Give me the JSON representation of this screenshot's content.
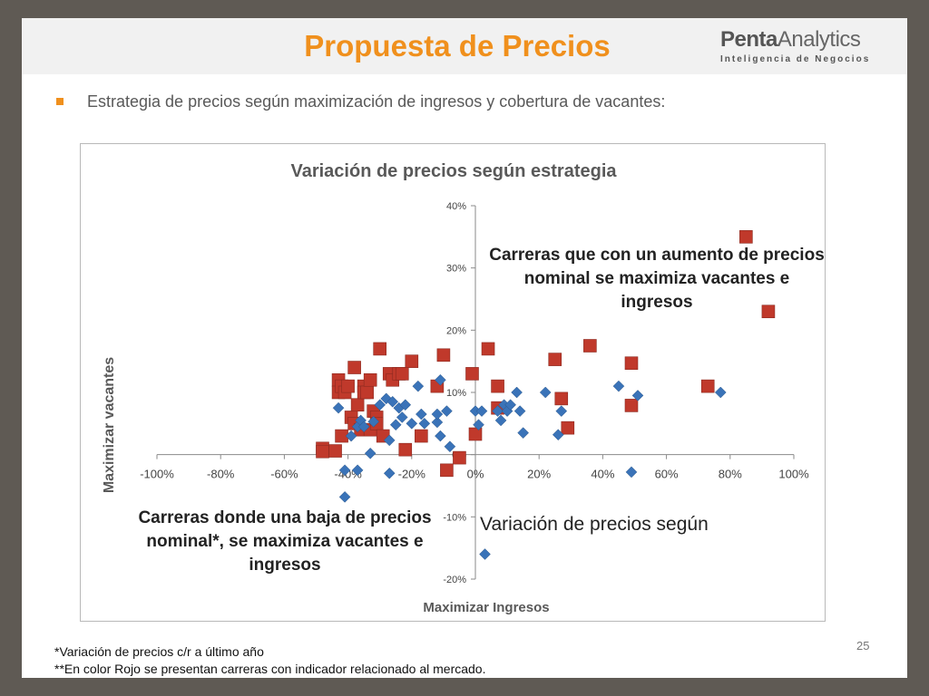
{
  "slide": {
    "title": "Propuesta de Precios",
    "logo_main_bold": "Penta",
    "logo_main_rest": "Analytics",
    "logo_sub": "Inteligencia de Negocios",
    "bullet": "Estrategia de precios según maximización de ingresos y cobertura de vacantes:",
    "annotation_top": "Carreras que con un aumento de precios nominal se maximiza vacantes e ingresos",
    "annotation_bottom": "Carreras donde una baja de precios nominal*, se maximiza vacantes e ingresos",
    "annotation_plain": "Variación de precios según",
    "footnote_1": "*Variación de precios c/r a último año",
    "footnote_2": "**En color Rojo se presentan carreras con  indicador relacionado al mercado.",
    "page_number": "25",
    "colors": {
      "title": "#f0901d",
      "bullet": "#f0901d",
      "red_series": "#c0392b",
      "blue_series": "#3a73b8"
    }
  },
  "chart_data": {
    "type": "scatter",
    "title": "Variación de precios según estrategia",
    "xlabel": "Maximizar Ingresos",
    "ylabel": "Maximizar vacantes",
    "xlim": [
      -1.0,
      1.0
    ],
    "ylim": [
      -0.2,
      0.4
    ],
    "x_ticks": [
      -1.0,
      -0.8,
      -0.6,
      -0.4,
      -0.2,
      0.0,
      0.2,
      0.4,
      0.6,
      0.8,
      1.0
    ],
    "x_tick_labels": [
      "-100%",
      "-80%",
      "-60%",
      "-40%",
      "-20%",
      "0%",
      "20%",
      "40%",
      "60%",
      "80%",
      "100%"
    ],
    "y_ticks": [
      -0.2,
      -0.1,
      0.0,
      0.1,
      0.2,
      0.3,
      0.4
    ],
    "y_tick_labels": [
      "-20%",
      "-10%",
      "0%",
      "10%",
      "20%",
      "30%",
      "40%"
    ],
    "grid": false,
    "series": [
      {
        "marker": "square",
        "color": "#c0392b",
        "x": [
          -0.48,
          -0.48,
          -0.44,
          -0.43,
          -0.43,
          -0.42,
          -0.42,
          -0.41,
          -0.4,
          -0.39,
          -0.38,
          -0.38,
          -0.37,
          -0.36,
          -0.35,
          -0.35,
          -0.34,
          -0.33,
          -0.33,
          -0.32,
          -0.31,
          -0.31,
          -0.3,
          -0.29,
          -0.27,
          -0.26,
          -0.24,
          -0.23,
          -0.22,
          -0.2,
          -0.17,
          -0.12,
          -0.1,
          -0.09,
          -0.05,
          -0.01,
          0.0,
          0.04,
          0.07,
          0.07,
          0.25,
          0.27,
          0.29,
          0.36,
          0.49,
          0.49,
          0.73,
          0.85,
          0.92
        ],
        "y": [
          0.01,
          0.005,
          0.006,
          0.12,
          0.1,
          0.11,
          0.03,
          0.1,
          0.11,
          0.06,
          0.14,
          0.05,
          0.08,
          0.04,
          0.11,
          0.1,
          0.1,
          0.12,
          0.04,
          0.07,
          0.06,
          0.05,
          0.17,
          0.03,
          0.13,
          0.12,
          0.13,
          0.13,
          0.008,
          0.15,
          0.03,
          0.11,
          0.16,
          -0.025,
          -0.005,
          0.13,
          0.033,
          0.17,
          0.075,
          0.11,
          0.153,
          0.09,
          0.043,
          0.175,
          0.079,
          0.147,
          0.11,
          0.35,
          0.23
        ]
      },
      {
        "marker": "diamond",
        "color": "#3a73b8",
        "x": [
          -0.43,
          -0.41,
          -0.41,
          -0.39,
          -0.37,
          -0.37,
          -0.36,
          -0.35,
          -0.33,
          -0.32,
          -0.3,
          -0.28,
          -0.27,
          -0.27,
          -0.26,
          -0.25,
          -0.24,
          -0.23,
          -0.22,
          -0.2,
          -0.18,
          -0.17,
          -0.16,
          -0.12,
          -0.12,
          -0.11,
          -0.11,
          -0.09,
          -0.08,
          0.0,
          0.01,
          0.02,
          0.03,
          0.07,
          0.08,
          0.09,
          0.1,
          0.11,
          0.13,
          0.14,
          0.15,
          0.22,
          0.26,
          0.27,
          0.45,
          0.49,
          0.51,
          0.77
        ],
        "y": [
          0.075,
          -0.025,
          -0.068,
          0.03,
          -0.025,
          0.045,
          0.055,
          0.045,
          0.002,
          0.053,
          0.08,
          0.09,
          0.023,
          -0.03,
          0.085,
          0.048,
          0.075,
          0.06,
          0.08,
          0.05,
          0.11,
          0.065,
          0.05,
          0.052,
          0.065,
          0.12,
          0.03,
          0.07,
          0.013,
          0.07,
          0.048,
          0.07,
          -0.16,
          0.07,
          0.055,
          0.08,
          0.07,
          0.08,
          0.1,
          0.07,
          0.035,
          0.1,
          0.032,
          0.07,
          0.11,
          -0.028,
          0.095,
          0.1
        ]
      }
    ]
  }
}
